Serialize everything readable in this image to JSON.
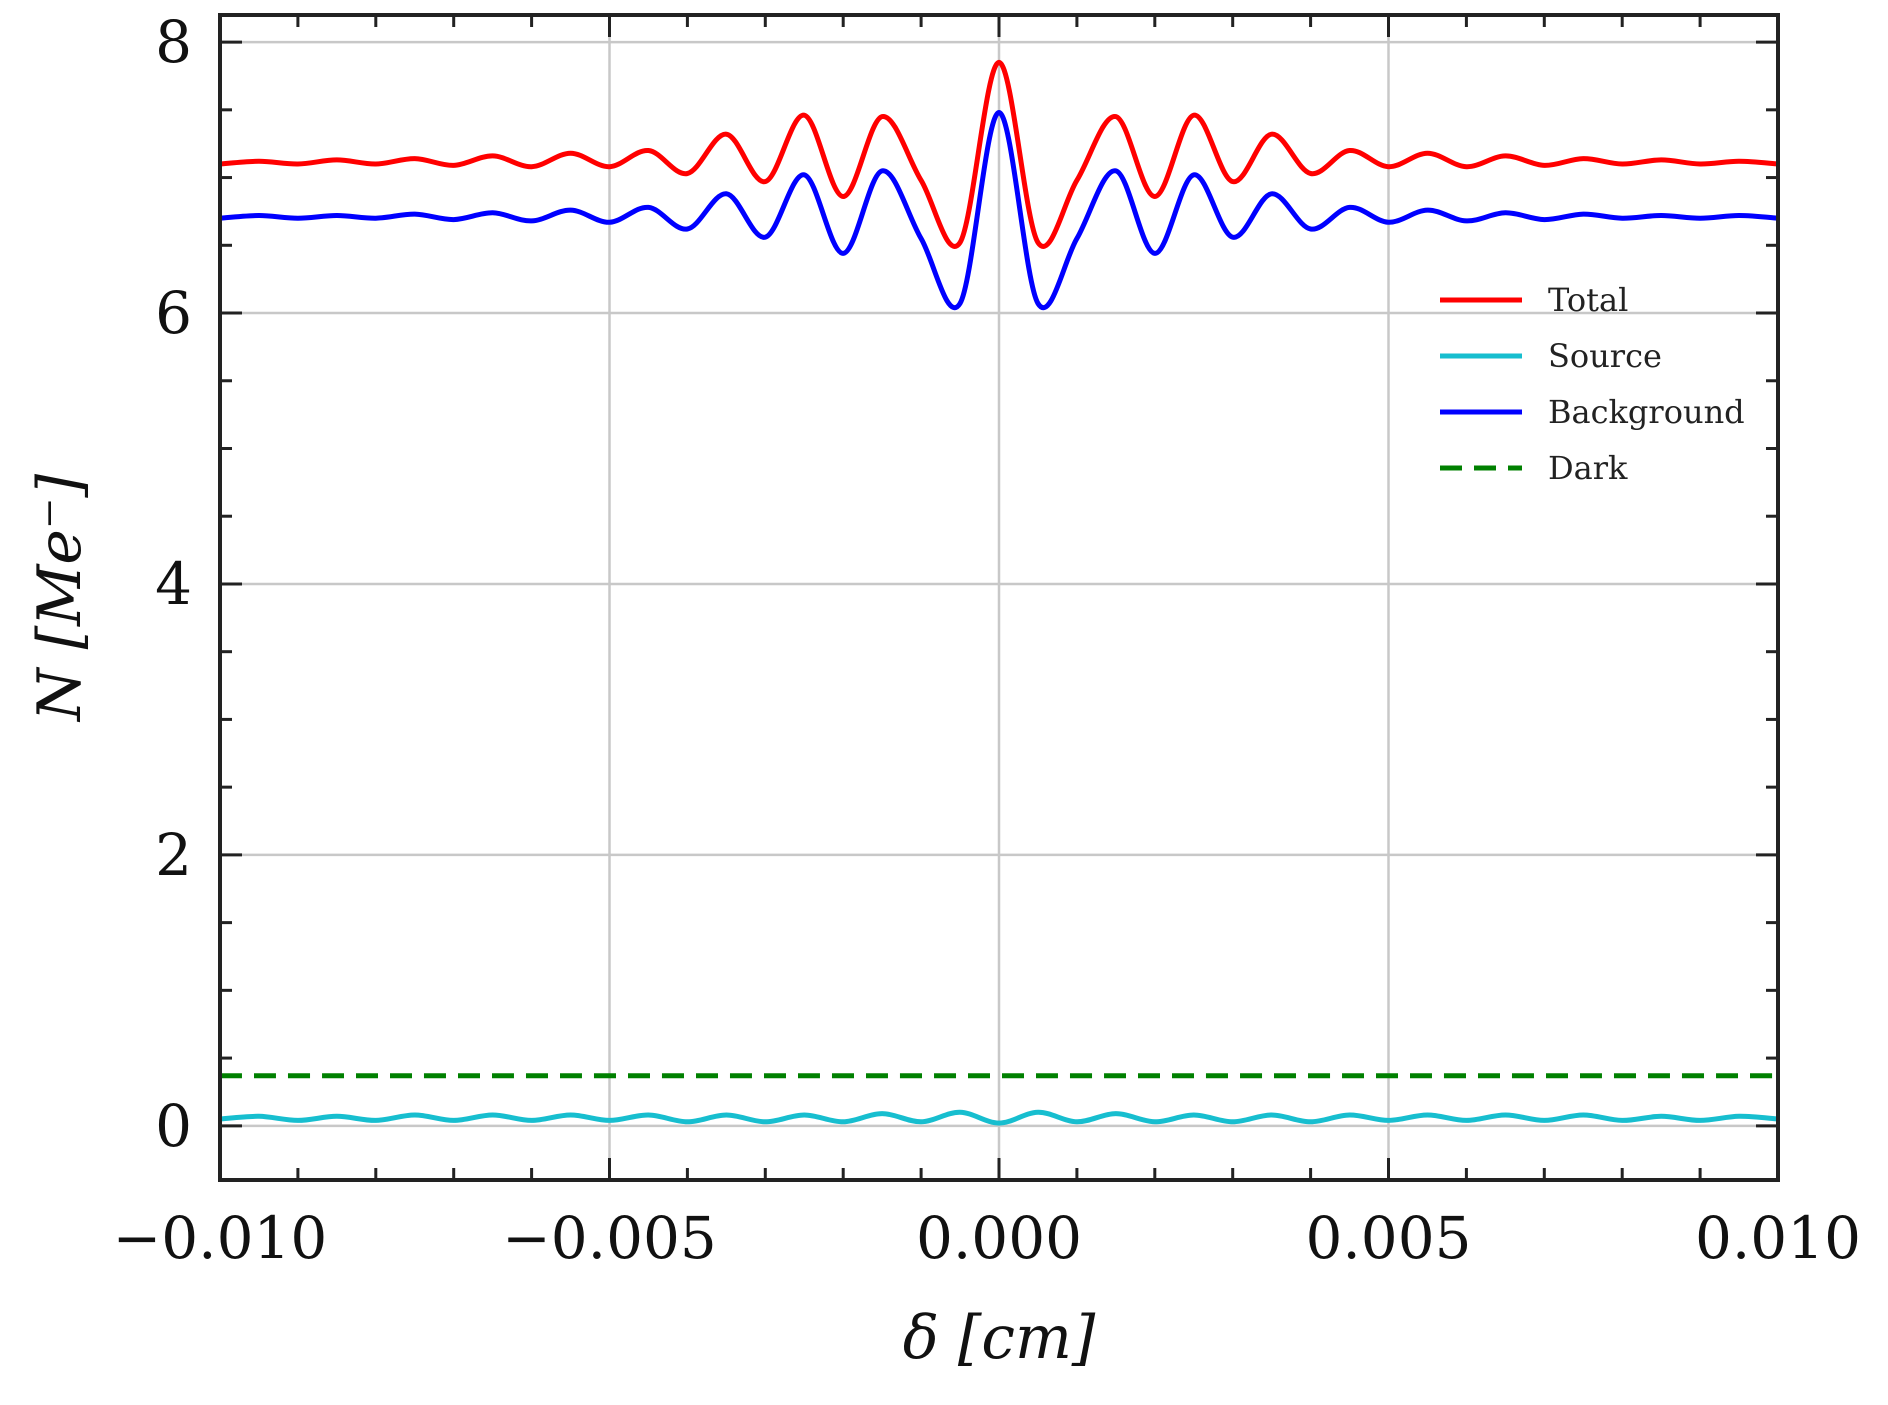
{
  "chart_data": {
    "type": "line",
    "xlabel": "δ [cm]",
    "ylabel": "N [Me⁻]",
    "xlim": [
      -0.01,
      0.01
    ],
    "ylim": [
      -0.4,
      8.2
    ],
    "xticks": [
      -0.01,
      -0.005,
      0.0,
      0.005,
      0.01
    ],
    "xtick_labels": [
      "−0.010",
      "−0.005",
      "0.000",
      "0.005",
      "0.010"
    ],
    "yticks": [
      0,
      2,
      4,
      6,
      8
    ],
    "ytick_labels": [
      "0",
      "2",
      "4",
      "6",
      "8"
    ],
    "grid": true,
    "legend_position": "right",
    "x": [
      -0.01,
      -0.0095,
      -0.009,
      -0.0085,
      -0.008,
      -0.0075,
      -0.007,
      -0.0065,
      -0.006,
      -0.0055,
      -0.005,
      -0.0045,
      -0.004,
      -0.0035,
      -0.003,
      -0.0025,
      -0.002,
      -0.0015,
      -0.001,
      -0.0005,
      0.0,
      0.0005,
      0.001,
      0.0015,
      0.002,
      0.0025,
      0.003,
      0.0035,
      0.004,
      0.0045,
      0.005,
      0.0055,
      0.006,
      0.0065,
      0.007,
      0.0075,
      0.008,
      0.0085,
      0.009,
      0.0095,
      0.01
    ],
    "series": [
      {
        "name": "Total",
        "color": "#ff0000",
        "dashed": false,
        "values": [
          7.1,
          7.12,
          7.1,
          7.13,
          7.1,
          7.14,
          7.09,
          7.16,
          7.08,
          7.18,
          7.08,
          7.2,
          7.03,
          7.32,
          6.97,
          7.46,
          6.86,
          7.45,
          6.98,
          6.52,
          7.85,
          6.52,
          6.98,
          7.45,
          6.86,
          7.46,
          6.97,
          7.32,
          7.03,
          7.2,
          7.08,
          7.18,
          7.08,
          7.16,
          7.09,
          7.14,
          7.1,
          7.13,
          7.1,
          7.12,
          7.1
        ]
      },
      {
        "name": "Source",
        "color": "#17becf",
        "dashed": false,
        "values": [
          0.05,
          0.07,
          0.04,
          0.07,
          0.04,
          0.08,
          0.04,
          0.08,
          0.04,
          0.08,
          0.04,
          0.08,
          0.03,
          0.08,
          0.03,
          0.08,
          0.03,
          0.09,
          0.03,
          0.1,
          0.02,
          0.1,
          0.03,
          0.09,
          0.03,
          0.08,
          0.03,
          0.08,
          0.03,
          0.08,
          0.04,
          0.08,
          0.04,
          0.08,
          0.04,
          0.08,
          0.04,
          0.07,
          0.04,
          0.07,
          0.05
        ]
      },
      {
        "name": "Background",
        "color": "#0000ff",
        "dashed": false,
        "values": [
          6.7,
          6.72,
          6.7,
          6.72,
          6.7,
          6.73,
          6.69,
          6.74,
          6.68,
          6.76,
          6.67,
          6.78,
          6.62,
          6.88,
          6.56,
          7.02,
          6.44,
          7.05,
          6.55,
          6.07,
          7.48,
          6.07,
          6.55,
          7.05,
          6.44,
          7.02,
          6.56,
          6.88,
          6.62,
          6.78,
          6.67,
          6.76,
          6.68,
          6.74,
          6.69,
          6.73,
          6.7,
          6.72,
          6.7,
          6.72,
          6.7
        ]
      },
      {
        "name": "Dark",
        "color": "#008000",
        "dashed": true,
        "values": [
          0.37,
          0.37,
          0.37,
          0.37,
          0.37,
          0.37,
          0.37,
          0.37,
          0.37,
          0.37,
          0.37,
          0.37,
          0.37,
          0.37,
          0.37,
          0.37,
          0.37,
          0.37,
          0.37,
          0.37,
          0.37,
          0.37,
          0.37,
          0.37,
          0.37,
          0.37,
          0.37,
          0.37,
          0.37,
          0.37,
          0.37,
          0.37,
          0.37,
          0.37,
          0.37,
          0.37,
          0.37,
          0.37,
          0.37,
          0.37,
          0.37
        ]
      }
    ]
  }
}
